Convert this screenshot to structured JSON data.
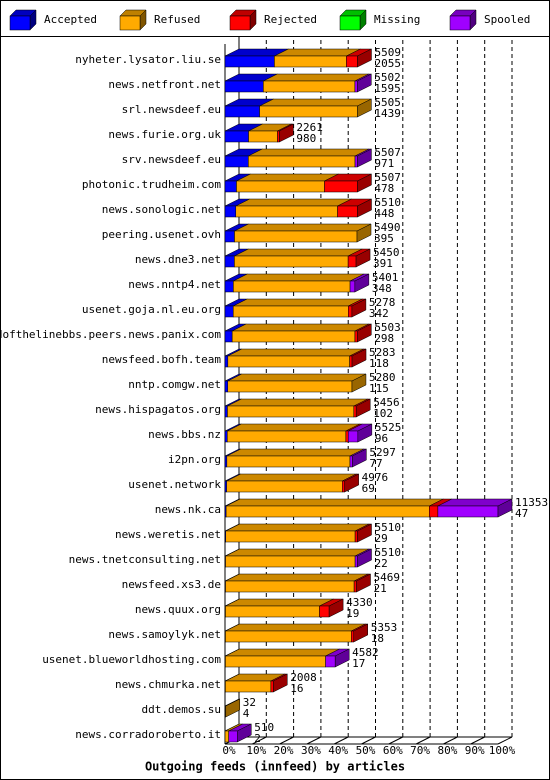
{
  "chart_data": {
    "type": "bar3d",
    "title": "Outgoing feeds (innfeed) by articles",
    "categories": [
      "nyheter.lysator.liu.se",
      "news.netfront.net",
      "srl.newsdeef.eu",
      "news.furie.org.uk",
      "srv.newsdeef.eu",
      "photonic.trudheim.com",
      "news.sonologic.net",
      "peering.usenet.ovh",
      "news.dne3.net",
      "news.nntp4.net",
      "usenet.goja.nl.eu.org",
      "endofthelinebbs.peers.news.panix.com",
      "newsfeed.bofh.team",
      "nntp.comgw.net",
      "news.hispagatos.org",
      "news.bbs.nz",
      "i2pn.org",
      "usenet.network",
      "news.nk.ca",
      "news.weretis.net",
      "news.tnetconsulting.net",
      "newsfeed.xs3.de",
      "news.quux.org",
      "news.samoylyk.net",
      "usenet.blueworldhosting.com",
      "news.chmurka.net",
      "ddt.demos.su",
      "news.corradoroberto.it"
    ],
    "totals": [
      5509,
      5502,
      5505,
      2261,
      5507,
      5507,
      5510,
      5490,
      5450,
      5401,
      5278,
      5503,
      5283,
      5280,
      5456,
      5525,
      5297,
      4976,
      11353,
      5510,
      5510,
      5469,
      4330,
      5353,
      4582,
      2008,
      32,
      510
    ],
    "series": [
      {
        "name": "Accepted",
        "color": "#0000ff",
        "values": [
          2055,
          1595,
          1439,
          980,
          971,
          478,
          448,
          395,
          391,
          348,
          342,
          298,
          118,
          115,
          102,
          96,
          77,
          69,
          47,
          29,
          22,
          21,
          19,
          18,
          17,
          16,
          4,
          2
        ]
      },
      {
        "name": "Refused",
        "color": "#ffaa00",
        "values": [
          2994,
          3807,
          4066,
          1201,
          4436,
          3659,
          4232,
          5095,
          4729,
          4853,
          4786,
          5105,
          5065,
          5165,
          5254,
          4929,
          5120,
          4807,
          8450,
          5381,
          5388,
          5348,
          3911,
          5235,
          4165,
          1892,
          28,
          150
        ]
      },
      {
        "name": "Rejected",
        "color": "#ff0000",
        "values": [
          460,
          0,
          0,
          80,
          0,
          1370,
          830,
          0,
          330,
          0,
          150,
          100,
          100,
          0,
          100,
          100,
          0,
          100,
          356,
          100,
          0,
          100,
          400,
          100,
          0,
          100,
          0,
          0
        ]
      },
      {
        "name": "Missing",
        "color": "#00ff00",
        "values": [
          0,
          0,
          0,
          0,
          0,
          0,
          0,
          0,
          0,
          0,
          0,
          0,
          0,
          0,
          0,
          0,
          0,
          0,
          0,
          0,
          0,
          0,
          0,
          0,
          0,
          0,
          0,
          0
        ]
      },
      {
        "name": "Spooled",
        "color": "#a000ff",
        "values": [
          0,
          100,
          0,
          0,
          100,
          0,
          0,
          0,
          0,
          200,
          0,
          0,
          0,
          0,
          0,
          400,
          100,
          0,
          2500,
          0,
          100,
          0,
          0,
          0,
          400,
          0,
          0,
          358
        ]
      }
    ],
    "xlim": [
      0,
      11353
    ],
    "xticks": [
      {
        "value": 0,
        "label": "0%"
      },
      {
        "value": 1135.3,
        "label": "10%"
      },
      {
        "value": 2270.6,
        "label": "20%"
      },
      {
        "value": 3405.9,
        "label": "30%"
      },
      {
        "value": 4541.2,
        "label": "40%"
      },
      {
        "value": 5676.5,
        "label": "50%"
      },
      {
        "value": 6811.8,
        "label": "60%"
      },
      {
        "value": 7947.1,
        "label": "70%"
      },
      {
        "value": 9082.4,
        "label": "80%"
      },
      {
        "value": 10217.7,
        "label": "90%"
      },
      {
        "value": 11353,
        "label": "100%"
      }
    ],
    "grid": true
  }
}
